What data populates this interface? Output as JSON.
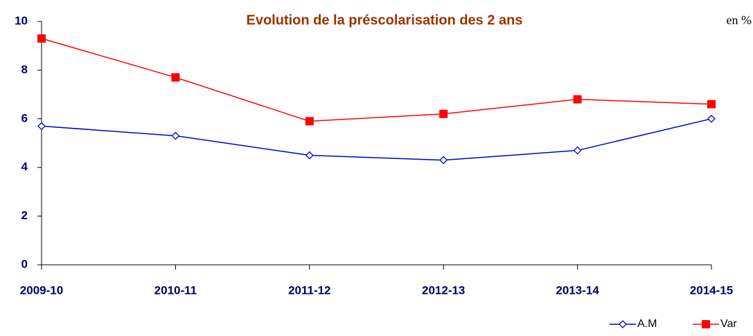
{
  "chart_data": {
    "type": "line",
    "title": "Evolution de la préscolarisation des 2 ans",
    "annotation": "en %",
    "categories": [
      "2009-10",
      "2010-11",
      "2011-12",
      "2012-13",
      "2013-14",
      "2014-15"
    ],
    "series": [
      {
        "name": "A.M",
        "color": "#0000cc",
        "marker": "diamond",
        "values": [
          5.7,
          5.3,
          4.5,
          4.3,
          4.7,
          6.0
        ]
      },
      {
        "name": "Var",
        "color": "#ff0000",
        "marker": "square",
        "values": [
          9.3,
          7.7,
          5.9,
          6.2,
          6.8,
          6.6
        ]
      }
    ],
    "ylim": [
      0,
      10
    ],
    "yticks": [
      0,
      2,
      4,
      6,
      8,
      10
    ],
    "grid": false,
    "legend": "bottom-right"
  }
}
